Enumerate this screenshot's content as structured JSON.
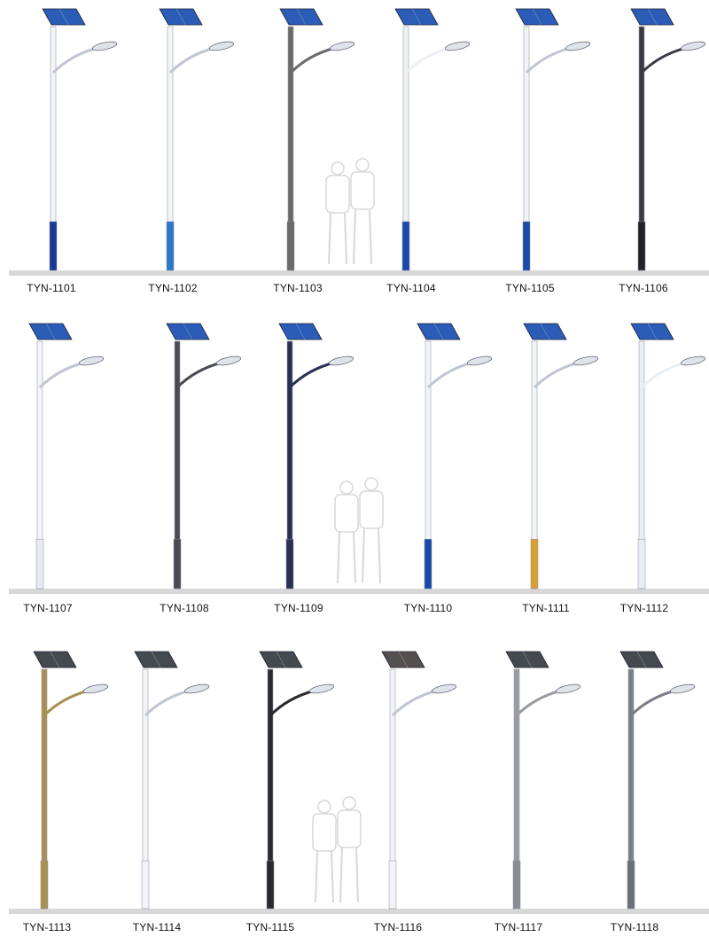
{
  "rows": [
    {
      "products": [
        {
          "model": "TYN-1101",
          "pole_color": "#f2f4f8",
          "base_color": "#1a3a9a",
          "panel_color": "#2a5cb8"
        },
        {
          "model": "TYN-1102",
          "pole_color": "#f2f4f8",
          "base_color": "#2a78c8",
          "panel_color": "#2a5cb8"
        },
        {
          "model": "TYN-1103",
          "pole_color": "#6a6a6a",
          "base_color": "#6a6a6a",
          "panel_color": "#2a5cb8"
        },
        {
          "model": "TYN-1104",
          "pole_color": "#eef0f4",
          "base_color": "#1a4aa8",
          "panel_color": "#2a5cb8"
        },
        {
          "model": "TYN-1105",
          "pole_color": "#f2f4f8",
          "base_color": "#1a4aa8",
          "panel_color": "#2a5cb8"
        },
        {
          "model": "TYN-1106",
          "pole_color": "#3a3a44",
          "base_color": "#222228",
          "panel_color": "#2a5cb8"
        }
      ]
    },
    {
      "products": [
        {
          "model": "TYN-1107",
          "pole_color": "#f2f4f8",
          "base_color": "#e8eaf0",
          "panel_color": "#2a5cb8"
        },
        {
          "model": "TYN-1108",
          "pole_color": "#4a4a52",
          "base_color": "#4a4a52",
          "panel_color": "#2a5cb8"
        },
        {
          "model": "TYN-1109",
          "pole_color": "#2a2f55",
          "base_color": "#2a2f55",
          "panel_color": "#2a5cb8"
        },
        {
          "model": "TYN-1110",
          "pole_color": "#f2f4f8",
          "base_color": "#1a4aa8",
          "panel_color": "#2a5cb8"
        },
        {
          "model": "TYN-1111",
          "pole_color": "#f2f4f8",
          "base_color": "#d8a030",
          "panel_color": "#2a5cb8"
        },
        {
          "model": "TYN-1112",
          "pole_color": "#e8eef4",
          "base_color": "#e8eef4",
          "panel_color": "#2a5cb8"
        }
      ]
    },
    {
      "products": [
        {
          "model": "TYN-1113",
          "pole_color": "#a89050",
          "base_color": "#a89050",
          "panel_color": "#444a50"
        },
        {
          "model": "TYN-1114",
          "pole_color": "#f2f4f8",
          "base_color": "#f2f4f8",
          "panel_color": "#444a50"
        },
        {
          "model": "TYN-1115",
          "pole_color": "#2a2a30",
          "base_color": "#2a2a30",
          "panel_color": "#444a50"
        },
        {
          "model": "TYN-1116",
          "pole_color": "#f2f4f8",
          "base_color": "#f2f4f8",
          "panel_color": "#555050"
        },
        {
          "model": "TYN-1117",
          "pole_color": "#9a9ca2",
          "base_color": "#8a8c92",
          "panel_color": "#444a50"
        },
        {
          "model": "TYN-1118",
          "pole_color": "#7a7e86",
          "base_color": "#6a6e76",
          "panel_color": "#444a50"
        }
      ]
    }
  ],
  "ground_color": "#d8d8d8",
  "silhouette_color": "#c8c8c8"
}
